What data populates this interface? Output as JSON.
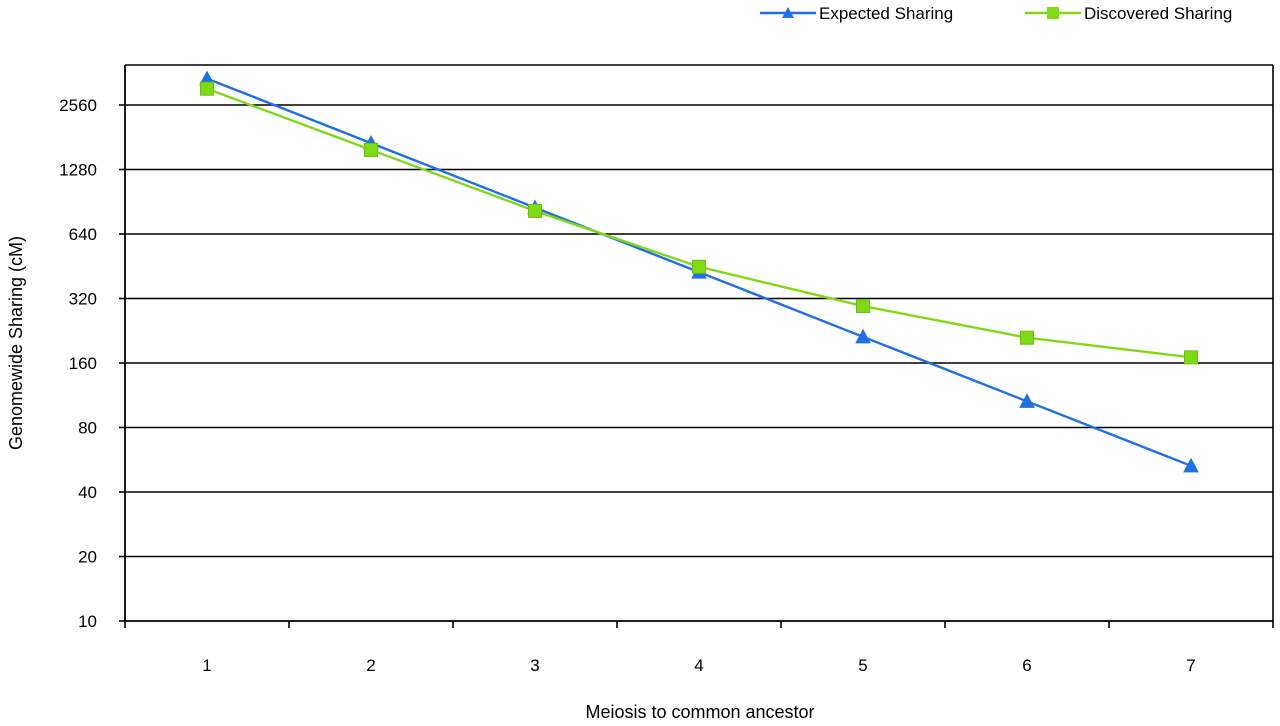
{
  "chart_data": {
    "type": "line",
    "title": "",
    "xlabel": "Meiosis to common ancestor",
    "ylabel": "Genomewide Sharing (cM)",
    "x": [
      1,
      2,
      3,
      4,
      5,
      6,
      7
    ],
    "x_tick_labels": [
      "1",
      "2",
      "3",
      "4",
      "5",
      "6",
      "7"
    ],
    "yscale": "log2",
    "ylim": [
      10,
      3400
    ],
    "y_ticks": [
      10,
      20,
      40,
      80,
      160,
      320,
      640,
      1280,
      2560
    ],
    "y_tick_labels": [
      "10",
      "20",
      "40",
      "80",
      "160",
      "320",
      "640",
      "1280",
      "2560"
    ],
    "grid": "horizontal",
    "legend_position": "top-right",
    "series": [
      {
        "name": "Expected Sharing",
        "color": "#1f6fe5",
        "marker": "triangle",
        "values": [
          3400,
          1700,
          850,
          425,
          212,
          106,
          53
        ]
      },
      {
        "name": "Discovered Sharing",
        "color": "#80d916",
        "marker": "square",
        "values": [
          3050,
          1580,
          820,
          450,
          295,
          210,
          170
        ]
      }
    ]
  }
}
